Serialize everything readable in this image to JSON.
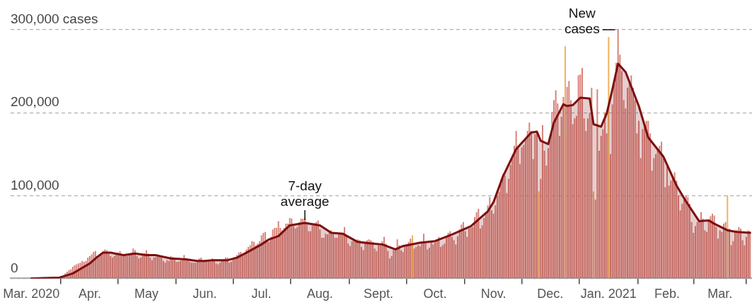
{
  "chart_data": {
    "type": "bar",
    "grid": "y",
    "legend": false,
    "marker": "none",
    "xlim": [
      "2020-02-19",
      "2021-03-18"
    ],
    "xticks": [
      {
        "value": "2020-03-01",
        "label": "Mar. 2020"
      },
      {
        "value": "2020-04-01",
        "label": "Apr."
      },
      {
        "value": "2020-05-01",
        "label": "May"
      },
      {
        "value": "2020-06-01",
        "label": "Jun."
      },
      {
        "value": "2020-07-01",
        "label": "Jul."
      },
      {
        "value": "2020-08-01",
        "label": "Aug."
      },
      {
        "value": "2020-09-01",
        "label": "Sept."
      },
      {
        "value": "2020-10-01",
        "label": "Oct."
      },
      {
        "value": "2020-11-01",
        "label": "Nov."
      },
      {
        "value": "2020-12-01",
        "label": "Dec."
      },
      {
        "value": "2021-01-01",
        "label": "Jan. 2021"
      },
      {
        "value": "2021-02-01",
        "label": "Feb."
      },
      {
        "value": "2021-03-01",
        "label": "Mar."
      }
    ],
    "ylim": [
      0,
      300000
    ],
    "yticks": [
      0,
      {
        "value": 100000,
        "label": "100,000"
      },
      {
        "value": 200000,
        "label": "200,000"
      },
      {
        "value": 300000,
        "label": "300,000 cases"
      }
    ],
    "annotations": [
      {
        "text": "New cases",
        "x": "2021-01-06",
        "y": 300000
      },
      {
        "text": "7-day average",
        "x": "2020-07-24",
        "y": 67000
      }
    ],
    "series": [
      {
        "color": "#d9837b",
        "x": [
          "2020-03-19",
          "2020-03-20",
          "2020-03-21",
          "2020-03-22",
          "2020-03-23",
          "2020-03-24",
          "2020-03-25",
          "2020-03-26",
          "2020-03-27",
          "2020-03-28",
          "2020-03-29",
          "2020-03-30",
          "2020-03-31",
          "2020-04-01",
          "2020-04-02",
          "2020-04-03",
          "2020-04-04",
          "2020-04-05",
          "2020-04-06",
          "2020-04-07",
          "2020-04-08",
          "2020-04-09",
          "2020-04-10",
          "2020-04-11",
          "2020-04-12",
          "2020-04-13",
          "2020-04-14",
          "2020-04-15",
          "2020-04-16",
          "2020-04-17",
          "2020-04-18",
          "2020-04-19",
          "2020-04-20",
          "2020-04-21",
          "2020-04-22",
          "2020-04-23",
          "2020-04-24",
          "2020-04-25",
          "2020-04-26",
          "2020-04-27",
          "2020-04-28",
          "2020-04-29",
          "2020-04-30",
          "2020-05-01",
          "2020-05-02",
          "2020-05-03",
          "2020-05-04",
          "2020-05-05",
          "2020-05-06",
          "2020-05-07",
          "2020-05-08",
          "2020-05-09",
          "2020-05-10",
          "2020-05-11",
          "2020-05-12",
          "2020-05-13",
          "2020-05-14",
          "2020-05-15",
          "2020-05-16",
          "2020-05-17",
          "2020-05-18",
          "2020-05-19",
          "2020-05-20",
          "2020-05-21",
          "2020-05-22",
          "2020-05-23",
          "2020-05-24",
          "2020-05-25",
          "2020-05-26",
          "2020-05-27",
          "2020-05-28",
          "2020-05-29",
          "2020-05-30",
          "2020-05-31",
          "2020-06-01",
          "2020-06-02",
          "2020-06-03",
          "2020-06-04",
          "2020-06-05",
          "2020-06-06",
          "2020-06-07",
          "2020-06-08",
          "2020-06-09",
          "2020-06-10",
          "2020-06-11",
          "2020-06-12",
          "2020-06-13",
          "2020-06-14",
          "2020-06-15",
          "2020-06-16",
          "2020-06-17",
          "2020-06-18",
          "2020-06-19",
          "2020-06-20",
          "2020-06-21",
          "2020-06-22",
          "2020-06-23",
          "2020-06-24",
          "2020-06-25",
          "2020-06-26",
          "2020-06-27",
          "2020-06-28",
          "2020-06-29",
          "2020-06-30",
          "2020-07-01",
          "2020-07-02",
          "2020-07-03",
          "2020-07-04",
          "2020-07-05",
          "2020-07-06",
          "2020-07-07",
          "2020-07-08",
          "2020-07-09",
          "2020-07-10",
          "2020-07-11",
          "2020-07-12",
          "2020-07-13",
          "2020-07-14",
          "2020-07-15",
          "2020-07-16",
          "2020-07-17",
          "2020-07-18",
          "2020-07-19",
          "2020-07-20",
          "2020-07-21",
          "2020-07-22",
          "2020-07-23",
          "2020-07-24",
          "2020-07-25",
          "2020-07-26",
          "2020-07-27",
          "2020-07-28",
          "2020-07-29",
          "2020-07-30",
          "2020-07-31",
          "2020-08-01",
          "2020-08-02",
          "2020-08-03",
          "2020-08-04",
          "2020-08-05",
          "2020-08-06",
          "2020-08-07",
          "2020-08-08",
          "2020-08-09",
          "2020-08-10",
          "2020-08-11",
          "2020-08-12",
          "2020-08-13",
          "2020-08-14",
          "2020-08-15",
          "2020-08-16",
          "2020-08-17",
          "2020-08-18",
          "2020-08-19",
          "2020-08-20",
          "2020-08-21",
          "2020-08-22",
          "2020-08-23",
          "2020-08-24",
          "2020-08-25",
          "2020-08-26",
          "2020-08-27",
          "2020-08-28",
          "2020-08-29",
          "2020-08-30",
          "2020-08-31",
          "2020-09-01",
          "2020-09-02",
          "2020-09-03",
          "2020-09-04",
          "2020-09-05",
          "2020-09-06",
          "2020-09-07",
          "2020-09-08",
          "2020-09-09",
          "2020-09-10",
          "2020-09-11",
          "2020-09-12",
          "2020-09-13",
          "2020-09-14",
          "2020-09-15",
          "2020-09-16",
          "2020-09-17",
          "2020-09-18",
          "2020-09-19",
          "2020-09-20",
          "2020-09-21",
          "2020-09-22",
          "2020-09-23",
          "2020-09-24",
          "2020-09-25",
          "2020-09-26",
          "2020-09-27",
          "2020-09-28",
          "2020-09-29",
          "2020-09-30",
          "2020-10-01",
          "2020-10-02",
          "2020-10-03",
          "2020-10-04",
          "2020-10-05",
          "2020-10-06",
          "2020-10-07",
          "2020-10-08",
          "2020-10-09",
          "2020-10-10",
          "2020-10-11",
          "2020-10-12",
          "2020-10-13",
          "2020-10-14",
          "2020-10-15",
          "2020-10-16",
          "2020-10-17",
          "2020-10-18",
          "2020-10-19",
          "2020-10-20",
          "2020-10-21",
          "2020-10-22",
          "2020-10-23",
          "2020-10-24",
          "2020-10-25",
          "2020-10-26",
          "2020-10-27",
          "2020-10-28",
          "2020-10-29",
          "2020-10-30",
          "2020-10-31",
          "2020-11-01",
          "2020-11-02",
          "2020-11-03",
          "2020-11-04",
          "2020-11-05",
          "2020-11-06",
          "2020-11-07",
          "2020-11-08",
          "2020-11-09",
          "2020-11-10",
          "2020-11-11",
          "2020-11-12",
          "2020-11-13",
          "2020-11-14",
          "2020-11-15",
          "2020-11-16",
          "2020-11-17",
          "2020-11-18",
          "2020-11-19",
          "2020-11-20",
          "2020-11-21",
          "2020-11-22",
          "2020-11-23",
          "2020-11-24",
          "2020-11-25",
          "2020-11-26",
          "2020-11-27",
          "2020-11-28",
          "2020-11-29",
          "2020-11-30",
          "2020-12-01",
          "2020-12-02",
          "2020-12-03",
          "2020-12-04",
          "2020-12-05",
          "2020-12-06",
          "2020-12-07",
          "2020-12-08",
          "2020-12-09",
          "2020-12-10",
          "2020-12-11",
          "2020-12-12",
          "2020-12-13",
          "2020-12-14",
          "2020-12-15",
          "2020-12-16",
          "2020-12-17",
          "2020-12-18",
          "2020-12-19",
          "2020-12-20",
          "2020-12-21",
          "2020-12-22",
          "2020-12-23",
          "2020-12-24",
          "2020-12-25",
          "2020-12-26",
          "2020-12-27",
          "2020-12-28",
          "2020-12-29",
          "2020-12-30",
          "2020-12-31",
          "2021-01-01",
          "2021-01-02",
          "2021-01-03",
          "2021-01-04",
          "2021-01-05",
          "2021-01-06",
          "2021-01-07",
          "2021-01-08",
          "2021-01-09",
          "2021-01-10",
          "2021-01-11",
          "2021-01-12",
          "2021-01-13",
          "2021-01-14",
          "2021-01-15",
          "2021-01-16",
          "2021-01-17",
          "2021-01-18",
          "2021-01-19",
          "2021-01-20",
          "2021-01-21",
          "2021-01-22",
          "2021-01-23",
          "2021-01-24",
          "2021-01-25",
          "2021-01-26",
          "2021-01-27",
          "2021-01-28",
          "2021-01-29",
          "2021-01-30",
          "2021-01-31",
          "2021-02-01",
          "2021-02-02",
          "2021-02-03",
          "2021-02-04",
          "2021-02-05",
          "2021-02-06",
          "2021-02-07",
          "2021-02-08",
          "2021-02-09",
          "2021-02-10",
          "2021-02-11",
          "2021-02-12",
          "2021-02-13",
          "2021-02-14",
          "2021-02-15",
          "2021-02-16",
          "2021-02-17",
          "2021-02-18",
          "2021-02-19",
          "2021-02-20",
          "2021-02-21",
          "2021-02-22",
          "2021-02-23",
          "2021-02-24",
          "2021-02-25",
          "2021-02-26",
          "2021-02-27",
          "2021-02-28",
          "2021-03-01",
          "2021-03-02",
          "2021-03-03",
          "2021-03-04",
          "2021-03-05",
          "2021-03-06",
          "2021-03-07",
          "2021-03-08",
          "2021-03-09",
          "2021-03-10",
          "2021-03-11",
          "2021-03-12",
          "2021-03-13",
          "2021-03-14",
          "2021-03-15",
          "2021-03-16",
          "2021-03-17"
        ],
        "values": [
          6000,
          8000,
          10000,
          11000,
          14000,
          16000,
          17000,
          18000,
          19000,
          21000,
          20000,
          21000,
          25000,
          27000,
          29000,
          32000,
          33000,
          26000,
          29000,
          31000,
          33000,
          35000,
          34000,
          31000,
          27000,
          25000,
          27000,
          30000,
          31000,
          33000,
          30000,
          27000,
          28000,
          27000,
          29000,
          31000,
          36000,
          34000,
          27000,
          24000,
          25000,
          28000,
          30000,
          34000,
          30000,
          25000,
          22000,
          25000,
          26000,
          29000,
          28000,
          26000,
          21000,
          19000,
          22000,
          21000,
          27000,
          26000,
          24000,
          20000,
          20000,
          21000,
          22000,
          28000,
          24000,
          22000,
          20000,
          19000,
          19000,
          19000,
          21000,
          24000,
          25000,
          21000,
          20000,
          20000,
          21000,
          22000,
          24000,
          22000,
          18000,
          17000,
          19000,
          21000,
          23000,
          25000,
          25000,
          19000,
          20000,
          24000,
          26000,
          28000,
          31000,
          32000,
          27000,
          30000,
          35000,
          38000,
          40000,
          45000,
          44000,
          40000,
          42000,
          45000,
          52000,
          55000,
          56000,
          46000,
          44000,
          50000,
          59000,
          61000,
          61000,
          69000,
          61000,
          58000,
          61000,
          66000,
          66000,
          73000,
          72000,
          63000,
          60000,
          62000,
          68000,
          72000,
          72000,
          73000,
          68000,
          57000,
          57000,
          64000,
          67000,
          68000,
          70000,
          59000,
          49000,
          49000,
          54000,
          53000,
          57000,
          58000,
          54000,
          49000,
          49000,
          54000,
          54000,
          54000,
          62000,
          52000,
          42000,
          39000,
          45000,
          46000,
          45000,
          47000,
          46000,
          38000,
          34000,
          42000,
          46000,
          47000,
          46000,
          44000,
          36000,
          33000,
          40000,
          40000,
          45000,
          50000,
          42000,
          33000,
          24000,
          27000,
          34000,
          36000,
          47000,
          40000,
          34000,
          32000,
          38000,
          40000,
          44000,
          48000,
          null,
          36000,
          38000,
          40000,
          39000,
          44000,
          54000,
          44000,
          35000,
          37000,
          43000,
          41000,
          43000,
          47000,
          50000,
          38000,
          40000,
          42000,
          50000,
          55000,
          57000,
          50000,
          46000,
          41000,
          51000,
          59000,
          65000,
          68000,
          57000,
          50000,
          60000,
          61000,
          62000,
          74000,
          80000,
          84000,
          60000,
          64000,
          73000,
          78000,
          88000,
          98000,
          82000,
          78000,
          88000,
          100000,
          104000,
          119000,
          126000,
          124000,
          103000,
          120000,
          137000,
          145000,
          160000,
          178000,
          160000,
          138000,
          158000,
          161000,
          169000,
          178000,
          188000,
          178000,
          144000,
          174000,
          177000,
          null,
          120000,
          185000,
          154000,
          136000,
          157000,
          172000,
          201000,
          215000,
          227000,
          211000,
          172000,
          195000,
          219000,
          null,
          231000,
          238000,
          215000,
          186000,
          193000,
          196000,
          245000,
          246000,
          254000,
          193000,
          178000,
          193000,
          200000,
          230000,
          null,
          95000,
          228000,
          154000,
          172000,
          180000,
          200000,
          175000,
          null,
          150000,
          210000,
          235000,
          260000,
          300000,
          270000,
          250000,
          215000,
          205000,
          230000,
          235000,
          245000,
          230000,
          215000,
          175000,
          190000,
          145000,
          180000,
          185000,
          190000,
          190000,
          175000,
          130000,
          145000,
          150000,
          155000,
          160000,
          165000,
          145000,
          110000,
          135000,
          112000,
          118000,
          122000,
          128000,
          118000,
          100000,
          82000,
          90000,
          95000,
          100000,
          98000,
          90000,
          68000,
          55000,
          63000,
          68000,
          70000,
          80000,
          72000,
          58000,
          56000,
          70000,
          75000,
          78000,
          76000,
          62000,
          48000,
          58000,
          56000,
          66000,
          68000,
          null,
          60000,
          40000,
          45000,
          57000,
          58000,
          62000,
          60000,
          46000,
          40000,
          50000,
          58000,
          57000
        ]
      },
      {
        "color": "#efb25e",
        "x": [
          "2020-09-19",
          "2020-11-25",
          "2020-12-09",
          "2020-12-24",
          "2021-01-01",
          "2021-03-05"
        ],
        "values": [
          52000,
          105000,
          280000,
          105000,
          291000,
          100000
        ]
      },
      {
        "type": "area",
        "color": "#7d0f0f",
        "x": [
          "2020-03-01",
          "2020-03-16",
          "2020-03-23",
          "2020-04-01",
          "2020-04-05",
          "2020-04-08",
          "2020-04-12",
          "2020-04-19",
          "2020-04-25",
          "2020-05-01",
          "2020-05-06",
          "2020-05-14",
          "2020-05-22",
          "2020-05-28",
          "2020-06-01",
          "2020-06-05",
          "2020-06-13",
          "2020-06-18",
          "2020-06-23",
          "2020-07-01",
          "2020-07-05",
          "2020-07-10",
          "2020-07-16",
          "2020-07-24",
          "2020-07-29",
          "2020-08-01",
          "2020-08-07",
          "2020-08-13",
          "2020-08-21",
          "2020-08-29",
          "2020-09-03",
          "2020-09-10",
          "2020-09-14",
          "2020-09-23",
          "2020-10-01",
          "2020-10-10",
          "2020-10-20",
          "2020-10-29",
          "2020-11-01",
          "2020-11-06",
          "2020-11-13",
          "2020-11-21",
          "2020-11-24",
          "2020-11-26",
          "2020-11-30",
          "2020-12-03",
          "2020-12-08",
          "2020-12-10",
          "2020-12-13",
          "2020-12-17",
          "2020-12-22",
          "2020-12-24",
          "2020-12-28",
          "2020-12-31",
          "2021-01-03",
          "2021-01-06",
          "2021-01-10",
          "2021-01-17",
          "2021-01-22",
          "2021-01-30",
          "2021-02-06",
          "2021-02-11",
          "2021-02-18",
          "2021-02-23",
          "2021-02-26",
          "2021-03-05",
          "2021-03-10",
          "2021-03-17"
        ],
        "values": [
          0,
          1000,
          6000,
          18000,
          26000,
          31000,
          31000,
          28000,
          30000,
          28000,
          28000,
          24000,
          23000,
          21000,
          21000,
          22000,
          22000,
          25000,
          31000,
          41000,
          47000,
          51000,
          64000,
          67000,
          65000,
          64000,
          55000,
          54000,
          44000,
          42000,
          41000,
          35000,
          39000,
          43000,
          45000,
          53000,
          63000,
          81000,
          92000,
          123000,
          156000,
          176000,
          177000,
          166000,
          162000,
          188000,
          210000,
          208000,
          209000,
          218000,
          217000,
          186000,
          183000,
          199000,
          228000,
          259000,
          249000,
          208000,
          170000,
          147000,
          112000,
          93000,
          69000,
          70000,
          66000,
          58000,
          56000,
          55000
        ]
      }
    ]
  }
}
